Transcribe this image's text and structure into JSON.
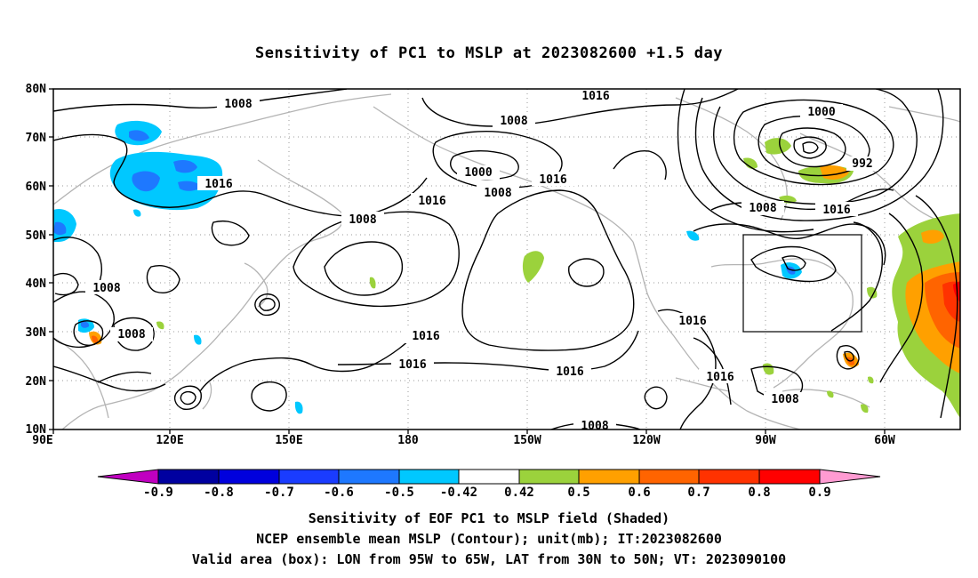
{
  "title": "Sensitivity of PC1 to MSLP at 2023082600 +1.5 day",
  "map": {
    "y_labels": [
      "80N",
      "70N",
      "60N",
      "50N",
      "40N",
      "30N",
      "20N",
      "10N"
    ],
    "x_labels": [
      "90E",
      "120E",
      "150E",
      "180",
      "150W",
      "120W",
      "90W",
      "60W"
    ],
    "contour_labels": {
      "c1": "1008",
      "c2": "1016",
      "c3": "1008",
      "c4": "1000",
      "c5": "1008",
      "c6": "1016",
      "c7": "1008",
      "c8": "1016",
      "c9": "1016",
      "c10": "1000",
      "c11": "992",
      "c12": "1008",
      "c13": "1016",
      "c14": "1008",
      "c15": "1008",
      "c16": "1016",
      "c17": "1016",
      "c18": "1016",
      "c19": "1016",
      "c20": "1016",
      "c21": "1008",
      "c22": "1008"
    }
  },
  "colorbar": {
    "labels": [
      "-0.9",
      "-0.8",
      "-0.7",
      "-0.6",
      "-0.5",
      "-0.42",
      "0.42",
      "0.5",
      "0.6",
      "0.7",
      "0.8",
      "0.9"
    ],
    "colors": [
      "#c000c0",
      "#0000a0",
      "#0000dd",
      "#1a3cff",
      "#1e78ff",
      "#00c8ff",
      "#ffffff",
      "#9bd23c",
      "#ffa000",
      "#ff6400",
      "#ff3200",
      "#ff0000",
      "#ff9bd2"
    ]
  },
  "captions": {
    "line1": "Sensitivity of EOF PC1 to MSLP field (Shaded)",
    "line2": "NCEP ensemble mean MSLP (Contour); unit(mb); IT:2023082600",
    "line3": "Valid area (box): LON from 95W to 65W, LAT from 30N to 50N; VT: 2023090100"
  }
}
